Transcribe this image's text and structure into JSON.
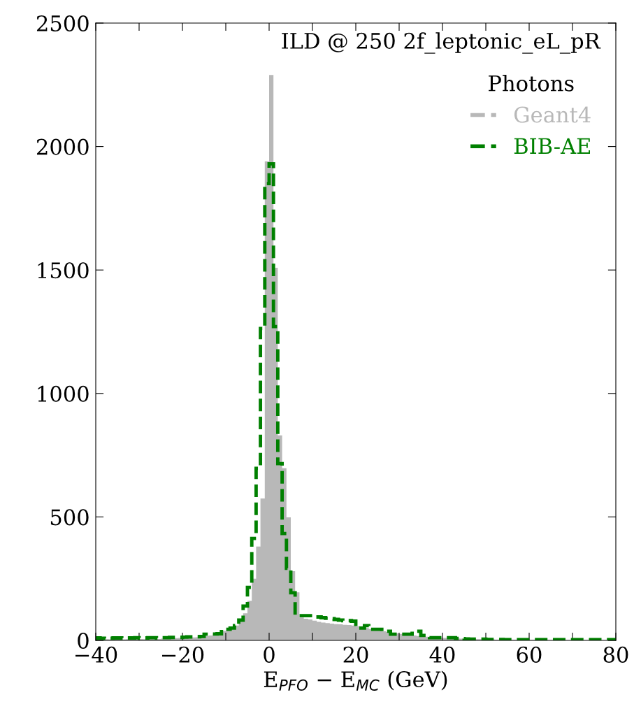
{
  "chart_data": {
    "type": "histogram",
    "title": "ILD @ 250 2f_leptonic_eL_pR",
    "xlabel": "E$_{PFO}$ − E$_{MC}$ (GeV)",
    "legend_title": "Photons",
    "legend": "top right",
    "line_style": "dashed",
    "bins": [
      -40,
      -39,
      -38,
      -37,
      -36,
      -35,
      -34,
      -33,
      -32,
      -31,
      -30,
      -29,
      -28,
      -27,
      -26,
      -25,
      -24,
      -23,
      -22,
      -21,
      -20,
      -19,
      -18,
      -17,
      -16,
      -15,
      -14,
      -13,
      -12,
      -11,
      -10,
      -9,
      -8,
      -7,
      -6,
      -5,
      -4,
      -3,
      -2,
      -1,
      0,
      1,
      2,
      3,
      4,
      5,
      6,
      7,
      8,
      9,
      10,
      11,
      12,
      13,
      14,
      15,
      16,
      17,
      18,
      19,
      20,
      21,
      22,
      23,
      24,
      25,
      26,
      27,
      28,
      29,
      30,
      31,
      32,
      33,
      34,
      35,
      36,
      37,
      38,
      39,
      40,
      41,
      42,
      43,
      44,
      45,
      46,
      47,
      48,
      49,
      50,
      51,
      52,
      53,
      54,
      55,
      56,
      57,
      58,
      59,
      60,
      61,
      62,
      63,
      64,
      65,
      66,
      67,
      68,
      69,
      70,
      71,
      72,
      73,
      74,
      75,
      76,
      77,
      78,
      79,
      80
    ],
    "series": [
      {
        "name": "Geant4",
        "color": "#b8b8b8",
        "values": [
          5,
          4,
          5,
          4,
          5,
          5,
          4,
          5,
          6,
          5,
          6,
          5,
          6,
          7,
          6,
          7,
          8,
          8,
          9,
          10,
          10,
          11,
          12,
          13,
          15,
          17,
          20,
          24,
          30,
          38,
          40,
          48,
          60,
          80,
          110,
          160,
          250,
          380,
          575,
          1940,
          2290,
          1509,
          830,
          697,
          498,
          280,
          195,
          93,
          88,
          85,
          80,
          75,
          72,
          70,
          68,
          66,
          65,
          63,
          62,
          60,
          57,
          54,
          50,
          46,
          42,
          40,
          37,
          34,
          31,
          28,
          26,
          24,
          22,
          20,
          18,
          16,
          15,
          13,
          12,
          11,
          10,
          9,
          8,
          8,
          7,
          6,
          6,
          5,
          5,
          4,
          4,
          4,
          3,
          3,
          3,
          3,
          2,
          2,
          2,
          2,
          2,
          2,
          2,
          2,
          1,
          1,
          1,
          1,
          1,
          1,
          1,
          1,
          1,
          1,
          1,
          1,
          1,
          1,
          1,
          1
        ]
      },
      {
        "name": "BIB-AE",
        "color": "#008000",
        "line_style": "dashed",
        "values": [
          10,
          9,
          8,
          9,
          10,
          10,
          9,
          10,
          10,
          11,
          10,
          10,
          11,
          11,
          10,
          11,
          11,
          12,
          12,
          12,
          13,
          14,
          14,
          15,
          16,
          25,
          25,
          26,
          27,
          45,
          45,
          50,
          60,
          82,
          139,
          215,
          413,
          697,
          1263,
          1850,
          1930,
          1271,
          716,
          433,
          292,
          193,
          102,
          100,
          100,
          100,
          95,
          95,
          92,
          90,
          88,
          85,
          82,
          80,
          80,
          78,
          50,
          50,
          60,
          45,
          45,
          45,
          37,
          37,
          25,
          25,
          25,
          25,
          25,
          37,
          37,
          20,
          20,
          11,
          11,
          11,
          11,
          11,
          11,
          8,
          7,
          6,
          5,
          5,
          5,
          5,
          4,
          4,
          4,
          4,
          3,
          3,
          3,
          3,
          3,
          3,
          3,
          3,
          3,
          3,
          3,
          3,
          3,
          3,
          3,
          3,
          3,
          3,
          3,
          3,
          3,
          3,
          3,
          3,
          3,
          3
        ]
      }
    ],
    "xlim": [
      -40,
      80
    ],
    "ylim": [
      0,
      2500
    ],
    "xticks": [
      -40,
      {
        "value": -30,
        "label": null
      },
      -20,
      {
        "value": -10,
        "label": null
      },
      0,
      {
        "value": 10,
        "label": null
      },
      20,
      {
        "value": 30,
        "label": null
      },
      40,
      {
        "value": 50,
        "label": null
      },
      60,
      {
        "value": 70,
        "label": null
      },
      80
    ],
    "yticks": [
      0,
      500,
      1000,
      1500,
      2000,
      2500
    ],
    "grid": false
  }
}
